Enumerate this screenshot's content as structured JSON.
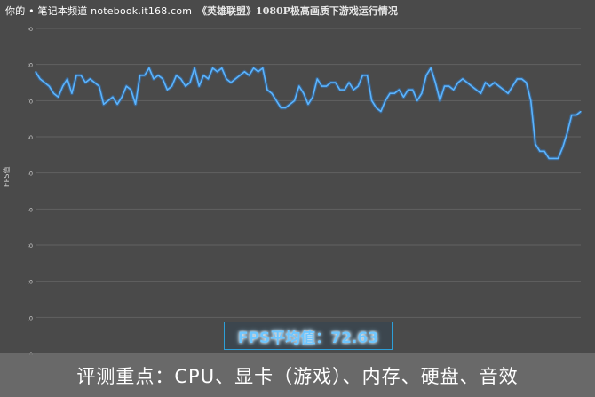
{
  "watermark": "你的 • 笔记本频道 notebook.it168.com",
  "average_label": "FPS平均值：72.63",
  "banner": "评测重点：CPU、显卡（游戏）、内存、硬盘、音效",
  "colors": {
    "background": "#4a4a4a",
    "grid": "#626262",
    "line": "#5ab4ff",
    "line_glow": "#2f7fd0",
    "axis_text": "#cfcfcf"
  },
  "chart_data": {
    "type": "line",
    "title": "《英雄联盟》1080P极高画质下游戏运行情况",
    "xlabel": "",
    "ylabel": "FPS值",
    "ylim": [
      0,
      90
    ],
    "yticks": [
      0,
      10,
      20,
      30,
      40,
      50,
      60,
      70,
      80,
      90
    ],
    "grid": true,
    "x_start": 1,
    "series": [
      {
        "values": [
          78,
          76,
          75,
          74,
          72,
          71,
          74,
          76,
          72,
          77,
          77,
          75,
          76,
          75,
          74,
          69,
          70,
          71,
          69,
          71,
          74,
          73,
          69,
          77,
          77,
          79,
          76,
          77,
          76,
          73,
          74,
          77,
          76,
          74,
          75,
          79,
          74,
          77,
          76,
          79,
          78,
          79,
          76,
          75,
          76,
          77,
          78,
          77,
          79,
          78,
          79,
          73,
          72,
          70,
          68,
          68,
          69,
          70,
          74,
          72,
          69,
          71,
          76,
          74,
          74,
          75,
          75,
          73,
          73,
          75,
          73,
          74,
          77,
          77,
          70,
          68,
          67,
          70,
          72,
          72,
          73,
          71,
          73,
          73,
          70,
          72,
          77,
          79,
          75,
          70,
          74,
          74,
          73,
          75,
          76,
          75,
          74,
          73,
          72,
          75,
          74,
          75,
          74,
          73,
          72,
          74,
          76,
          76,
          75,
          70,
          58,
          56,
          56,
          54,
          54,
          54,
          57,
          61,
          66,
          66,
          67
        ]
      }
    ]
  }
}
